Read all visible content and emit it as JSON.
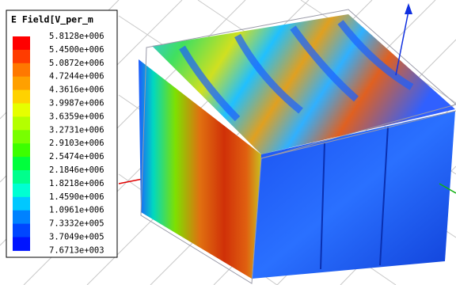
{
  "legend": {
    "title": "E Field[V_per_m",
    "labels": [
      "5.8128e+006",
      "5.4500e+006",
      "5.0872e+006",
      "4.7244e+006",
      "4.3616e+006",
      "3.9987e+006",
      "3.6359e+006",
      "3.2731e+006",
      "2.9103e+006",
      "2.5474e+006",
      "2.1846e+006",
      "1.8218e+006",
      "1.4590e+006",
      "1.0961e+006",
      "7.3332e+005",
      "3.7049e+005",
      "7.6713e+003"
    ],
    "colors": [
      "#ff0000",
      "#ff3c00",
      "#ff7800",
      "#ffa000",
      "#ffd200",
      "#e6ff00",
      "#b4ff00",
      "#78ff00",
      "#3cff00",
      "#00ff3c",
      "#00ff8c",
      "#00ffd2",
      "#00c8ff",
      "#0082ff",
      "#0046ff",
      "#0014ff"
    ]
  }
}
